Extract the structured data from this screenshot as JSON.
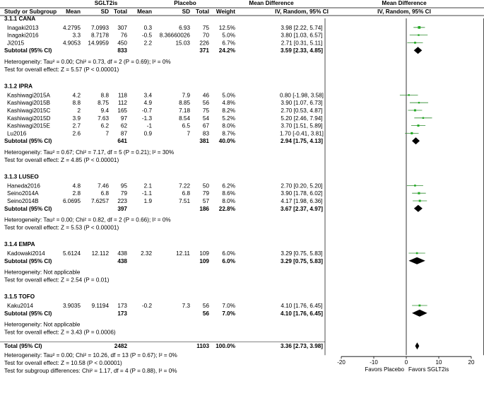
{
  "header": {
    "group_top": [
      {
        "key": "sglt2",
        "label": "SGLT2is"
      },
      {
        "key": "placebo",
        "label": "Placebo"
      },
      {
        "key": "md",
        "label": "Mean Difference"
      },
      {
        "key": "md_plot",
        "label": "Mean Difference"
      }
    ],
    "columns": [
      {
        "key": "study",
        "label": "Study or Subgroup"
      },
      {
        "key": "m1",
        "label": "Mean"
      },
      {
        "key": "sd1",
        "label": "SD"
      },
      {
        "key": "n1",
        "label": "Total"
      },
      {
        "key": "m2",
        "label": "Mean"
      },
      {
        "key": "sd2",
        "label": "SD"
      },
      {
        "key": "n2",
        "label": "Total"
      },
      {
        "key": "weight",
        "label": "Weight"
      },
      {
        "key": "ci",
        "label": "IV, Random, 95% CI"
      },
      {
        "key": "ci_plot",
        "label": "IV, Random, 95% CI"
      }
    ]
  },
  "colors": {
    "ci_line": "#2e8b2e",
    "study_box": "#22aa22",
    "diamond": "#000000",
    "text": "#000000"
  },
  "chart_data": {
    "type": "forest",
    "x_axis": {
      "range": [
        -20,
        20
      ],
      "ticks": [
        -20,
        -10,
        0,
        10,
        20
      ],
      "tick_labels": [
        "-20",
        "-10",
        "0",
        "10",
        "20"
      ]
    },
    "favors_left": "Favors Placebo",
    "favors_right": "Favors SGLT2is",
    "subgroups": [
      {
        "title": "3.1.1 CANA",
        "studies": [
          {
            "name": "Inagaki2013",
            "m1": "4.2795",
            "sd1": "7.0993",
            "n1": "307",
            "m2": "0.3",
            "sd2": "6.93",
            "n2": "75",
            "weight": "12.5%",
            "ci_text": "3.98 [2.22, 5.74]",
            "est": 3.98,
            "lo": 2.22,
            "hi": 5.74,
            "w": 12.5
          },
          {
            "name": "Inagaki2016",
            "m1": "3.3",
            "sd1": "8.7178",
            "n1": "76",
            "m2": "-0.5",
            "sd2": "8.36660026",
            "n2": "70",
            "weight": "5.0%",
            "ci_text": "3.80 [1.03, 6.57]",
            "est": 3.8,
            "lo": 1.03,
            "hi": 6.57,
            "w": 5.0
          },
          {
            "name": "Ji2015",
            "m1": "4.9053",
            "sd1": "14.9959",
            "n1": "450",
            "m2": "2.2",
            "sd2": "15.03",
            "n2": "226",
            "weight": "6.7%",
            "ci_text": "2.71 [0.31, 5.11]",
            "est": 2.71,
            "lo": 0.31,
            "hi": 5.11,
            "w": 6.7
          }
        ],
        "subtotal": {
          "label": "Subtotal (95% CI)",
          "n1": "833",
          "n2": "371",
          "weight": "24.2%",
          "ci_text": "3.59 [2.33, 4.85]",
          "est": 3.59,
          "lo": 2.33,
          "hi": 4.85
        },
        "heterogeneity": "Heterogeneity: Tau² = 0.00; Chi² = 0.73, df = 2 (P = 0.69); I² = 0%",
        "overall_test": "Test for overall effect: Z = 5.57 (P < 0.00001)"
      },
      {
        "title": "3.1.2 IPRA",
        "studies": [
          {
            "name": "Kashiwagi2015A",
            "m1": "4.2",
            "sd1": "8.8",
            "n1": "118",
            "m2": "3.4",
            "sd2": "7.9",
            "n2": "46",
            "weight": "5.0%",
            "ci_text": "0.80 [-1.98, 3.58]",
            "est": 0.8,
            "lo": -1.98,
            "hi": 3.58,
            "w": 5.0
          },
          {
            "name": "Kashiwagi2015B",
            "m1": "8.8",
            "sd1": "8.75",
            "n1": "112",
            "m2": "4.9",
            "sd2": "8.85",
            "n2": "56",
            "weight": "4.8%",
            "ci_text": "3.90 [1.07, 6.73]",
            "est": 3.9,
            "lo": 1.07,
            "hi": 6.73,
            "w": 4.8
          },
          {
            "name": "Kashiwagi2015C",
            "m1": "2",
            "sd1": "9.4",
            "n1": "165",
            "m2": "-0.7",
            "sd2": "7.18",
            "n2": "75",
            "weight": "8.2%",
            "ci_text": "2.70 [0.53, 4.87]",
            "est": 2.7,
            "lo": 0.53,
            "hi": 4.87,
            "w": 8.2
          },
          {
            "name": "Kashiwagi2015D",
            "m1": "3.9",
            "sd1": "7.63",
            "n1": "97",
            "m2": "-1.3",
            "sd2": "8.54",
            "n2": "54",
            "weight": "5.2%",
            "ci_text": "5.20 [2.46, 7.94]",
            "est": 5.2,
            "lo": 2.46,
            "hi": 7.94,
            "w": 5.2
          },
          {
            "name": "Kashiwagi2015E",
            "m1": "2.7",
            "sd1": "6.2",
            "n1": "62",
            "m2": "-1",
            "sd2": "6.5",
            "n2": "67",
            "weight": "8.0%",
            "ci_text": "3.70 [1.51, 5.89]",
            "est": 3.7,
            "lo": 1.51,
            "hi": 5.89,
            "w": 8.0
          },
          {
            "name": "Lu2016",
            "m1": "2.6",
            "sd1": "7",
            "n1": "87",
            "m2": "0.9",
            "sd2": "7",
            "n2": "83",
            "weight": "8.7%",
            "ci_text": "1.70 [-0.41, 3.81]",
            "est": 1.7,
            "lo": -0.41,
            "hi": 3.81,
            "w": 8.7
          }
        ],
        "subtotal": {
          "label": "Subtotal (95% CI)",
          "n1": "641",
          "n2": "381",
          "weight": "40.0%",
          "ci_text": "2.94 [1.75, 4.13]",
          "est": 2.94,
          "lo": 1.75,
          "hi": 4.13
        },
        "heterogeneity": "Heterogeneity: Tau² = 0.67; Chi² = 7.17, df = 5 (P = 0.21); I² = 30%",
        "overall_test": "Test for overall effect: Z = 4.85 (P < 0.00001)"
      },
      {
        "title": "3.1.3 LUSEO",
        "studies": [
          {
            "name": "Haneda2016",
            "m1": "4.8",
            "sd1": "7.46",
            "n1": "95",
            "m2": "2.1",
            "sd2": "7.22",
            "n2": "50",
            "weight": "6.2%",
            "ci_text": "2.70 [0.20, 5.20]",
            "est": 2.7,
            "lo": 0.2,
            "hi": 5.2,
            "w": 6.2
          },
          {
            "name": "Seino2014A",
            "m1": "2.8",
            "sd1": "6.8",
            "n1": "79",
            "m2": "-1.1",
            "sd2": "6.8",
            "n2": "79",
            "weight": "8.6%",
            "ci_text": "3.90 [1.78, 6.02]",
            "est": 3.9,
            "lo": 1.78,
            "hi": 6.02,
            "w": 8.6
          },
          {
            "name": "Seino2014B",
            "m1": "6.0695",
            "sd1": "7.6257",
            "n1": "223",
            "m2": "1.9",
            "sd2": "7.51",
            "n2": "57",
            "weight": "8.0%",
            "ci_text": "4.17 [1.98, 6.36]",
            "est": 4.17,
            "lo": 1.98,
            "hi": 6.36,
            "w": 8.0
          }
        ],
        "subtotal": {
          "label": "Subtotal (95% CI)",
          "n1": "397",
          "n2": "186",
          "weight": "22.8%",
          "ci_text": "3.67 [2.37, 4.97]",
          "est": 3.67,
          "lo": 2.37,
          "hi": 4.97
        },
        "heterogeneity": "Heterogeneity: Tau² = 0.00; Chi² = 0.82, df = 2 (P = 0.66); I² = 0%",
        "overall_test": "Test for overall effect: Z = 5.53 (P < 0.00001)"
      },
      {
        "title": "3.1.4 EMPA",
        "studies": [
          {
            "name": "Kadowaki2014",
            "m1": "5.6124",
            "sd1": "12.112",
            "n1": "438",
            "m2": "2.32",
            "sd2": "12.11",
            "n2": "109",
            "weight": "6.0%",
            "ci_text": "3.29 [0.75, 5.83]",
            "est": 3.29,
            "lo": 0.75,
            "hi": 5.83,
            "w": 6.0
          }
        ],
        "subtotal": {
          "label": "Subtotal (95% CI)",
          "n1": "438",
          "n2": "109",
          "weight": "6.0%",
          "ci_text": "3.29 [0.75, 5.83]",
          "est": 3.29,
          "lo": 0.75,
          "hi": 5.83
        },
        "heterogeneity": "Heterogeneity: Not applicable",
        "overall_test": "Test for overall effect: Z = 2.54 (P = 0.01)"
      },
      {
        "title": "3.1.5 TOFO",
        "studies": [
          {
            "name": "Kaku2014",
            "m1": "3.9035",
            "sd1": "9.1194",
            "n1": "173",
            "m2": "-0.2",
            "sd2": "7.3",
            "n2": "56",
            "weight": "7.0%",
            "ci_text": "4.10 [1.76, 6.45]",
            "est": 4.1,
            "lo": 1.76,
            "hi": 6.45,
            "w": 7.0
          }
        ],
        "subtotal": {
          "label": "Subtotal (95% CI)",
          "n1": "173",
          "n2": "56",
          "weight": "7.0%",
          "ci_text": "4.10 [1.76, 6.45]",
          "est": 4.1,
          "lo": 1.76,
          "hi": 6.45
        },
        "heterogeneity": "Heterogeneity: Not applicable",
        "overall_test": "Test for overall effect: Z = 3.43 (P = 0.0006)"
      }
    ],
    "total": {
      "label": "Total (95% CI)",
      "n1": "2482",
      "n2": "1103",
      "weight": "100.0%",
      "ci_text": "3.36 [2.73, 3.98]",
      "est": 3.36,
      "lo": 2.73,
      "hi": 3.98
    },
    "footer": [
      "Heterogeneity: Tau² = 0.00; Chi² = 10.26, df = 13 (P = 0.67); I² = 0%",
      "Test for overall effect: Z = 10.58 (P < 0.00001)",
      "Test for subgroup differences: Chi² = 1.17, df = 4 (P = 0.88), I² = 0%"
    ]
  }
}
